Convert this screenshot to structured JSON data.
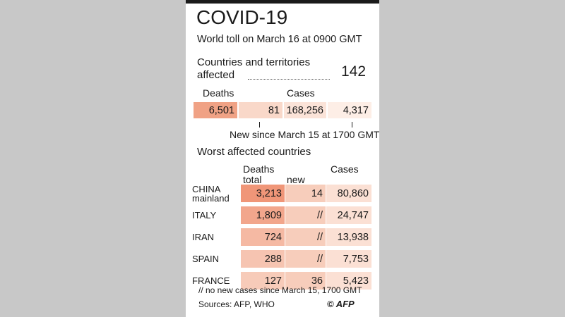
{
  "header": {
    "title": "COVID-19",
    "subtitle": "World toll on March 16 at 0900 GMT"
  },
  "affected": {
    "label_line1": "Countries and territories",
    "label_line2": "affected",
    "value": "142"
  },
  "totals": {
    "deaths_label": "Deaths",
    "cases_label": "Cases",
    "deaths": "6,501",
    "new_deaths": "81",
    "cases": "168,256",
    "new_cases": "4,317",
    "new_since": "New since March 15 at 1700 GMT"
  },
  "worst": {
    "heading": "Worst affected countries",
    "col_deaths_1": "Deaths",
    "col_deaths_2": "total",
    "col_new": "new",
    "col_cases": "Cases"
  },
  "footer": {
    "note": "// no new cases since March 15, 1700 GMT",
    "sources": "Sources: AFP, WHO",
    "credit": "© AFP"
  },
  "colors": {
    "deaths_strong": "#f0a285",
    "deaths_light": "#f9d8c9",
    "cases_light": "#fbe3d8",
    "new_cases_light": "#fdeee6",
    "row_new": "#f7cdbb",
    "row_cases": "#fbe0d4"
  },
  "chart_data": {
    "type": "table",
    "columns": [
      "Deaths total",
      "new",
      "Cases"
    ],
    "rows": [
      {
        "country": [
          "CHINA",
          "mainland"
        ],
        "deaths_total": 3213,
        "deaths_total_text": "3,213",
        "new": "14",
        "cases": 80860,
        "cases_text": "80,860"
      },
      {
        "country": [
          "ITALY"
        ],
        "deaths_total": 1809,
        "deaths_total_text": "1,809",
        "new": "//",
        "cases": 24747,
        "cases_text": "24,747"
      },
      {
        "country": [
          "IRAN"
        ],
        "deaths_total": 724,
        "deaths_total_text": "724",
        "new": "//",
        "cases": 13938,
        "cases_text": "13,938"
      },
      {
        "country": [
          "SPAIN"
        ],
        "deaths_total": 288,
        "deaths_total_text": "288",
        "new": "//",
        "cases": 7753,
        "cases_text": "7,753"
      },
      {
        "country": [
          "FRANCE"
        ],
        "deaths_total": 127,
        "deaths_total_text": "127",
        "new": "36",
        "cases": 5423,
        "cases_text": "5,423"
      }
    ]
  }
}
